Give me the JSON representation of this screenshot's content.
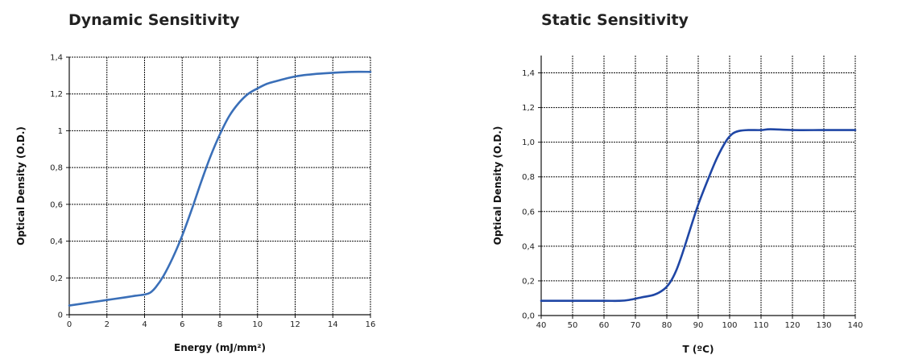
{
  "chart_data": [
    {
      "type": "line",
      "title": "Dynamic Sensitivity",
      "xlabel": "Energy (mJ/mm²)",
      "ylabel": "Optical Density (O.D.)",
      "xlim": [
        0,
        16
      ],
      "ylim": [
        0,
        1.4
      ],
      "x_ticks": [
        "0",
        "2",
        "4",
        "6",
        "8",
        "10",
        "12",
        "14",
        "16"
      ],
      "y_ticks": [
        "0",
        "0,2",
        "0,4",
        "0,6",
        "0,8",
        "1",
        "1,2",
        "1,4"
      ],
      "grid": true,
      "line_color": "#3a6fb8",
      "series": [
        {
          "name": "",
          "x": [
            0,
            1,
            2,
            3,
            3.5,
            4,
            4.3,
            4.6,
            5,
            5.5,
            6,
            6.5,
            7,
            7.5,
            8,
            8.5,
            9,
            9.5,
            10,
            10.5,
            11,
            12,
            13,
            14,
            15,
            16
          ],
          "y": [
            0.05,
            0.065,
            0.08,
            0.095,
            0.103,
            0.11,
            0.12,
            0.15,
            0.21,
            0.31,
            0.43,
            0.57,
            0.72,
            0.86,
            0.98,
            1.08,
            1.15,
            1.2,
            1.23,
            1.255,
            1.27,
            1.295,
            1.308,
            1.315,
            1.32,
            1.32
          ]
        }
      ]
    },
    {
      "type": "line",
      "title": "Static Sensitivity",
      "xlabel": "T (ºC)",
      "ylabel": "Optical Density (O.D.)",
      "xlim": [
        40,
        140
      ],
      "ylim": [
        0,
        1.5
      ],
      "x_ticks": [
        "40",
        "50",
        "60",
        "70",
        "80",
        "90",
        "100",
        "110",
        "120",
        "130",
        "140"
      ],
      "y_ticks": [
        "0,0",
        "0,2",
        "0,4",
        "0,6",
        "0,8",
        "1,0",
        "1,2",
        "1,4"
      ],
      "grid": true,
      "line_color": "#1f46a5",
      "series": [
        {
          "name": "",
          "x": [
            40,
            50,
            60,
            65,
            68,
            72,
            76,
            79,
            81,
            83,
            85,
            88,
            90,
            93,
            96,
            99,
            101,
            103,
            106,
            110,
            113,
            120,
            130,
            140
          ],
          "y": [
            0.085,
            0.085,
            0.085,
            0.085,
            0.09,
            0.105,
            0.12,
            0.15,
            0.19,
            0.26,
            0.36,
            0.53,
            0.64,
            0.78,
            0.91,
            1.01,
            1.05,
            1.065,
            1.07,
            1.07,
            1.075,
            1.07,
            1.07,
            1.07
          ]
        }
      ]
    }
  ]
}
